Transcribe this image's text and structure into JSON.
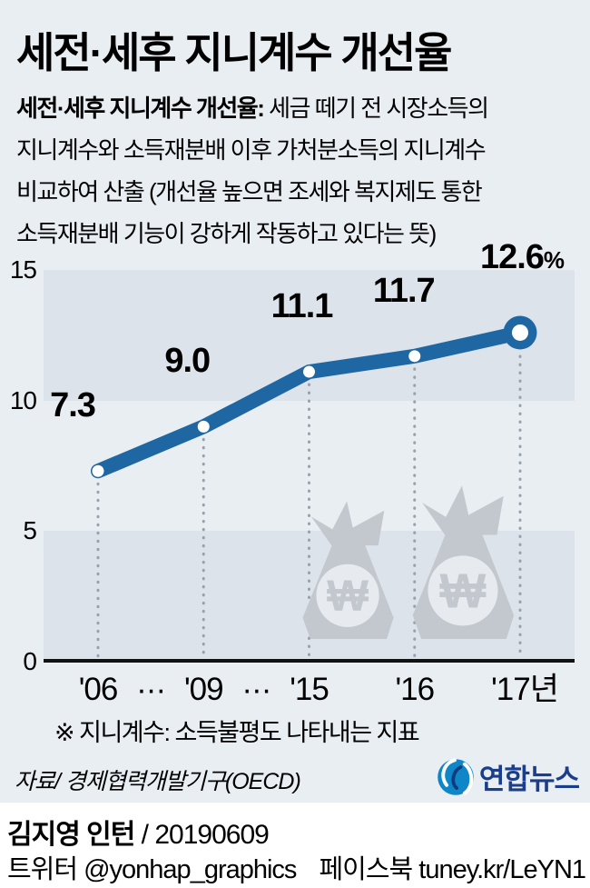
{
  "header": {
    "title": "세전·세후 지니계수 개선율",
    "desc_bold": "세전·세후 지니계수 개선율:",
    "desc_line1_rest": " 세금 떼기 전 시장소득의",
    "desc_line2": "지니계수와 소득재분배 이후 가처분소득의 지니계수",
    "desc_line3": "비교하여 산출 (개선율 높으면 조세와 복지제도 통한",
    "desc_line4": " 소득재분배 기능이 강하게 작동하고 있다는 뜻)"
  },
  "chart_data": {
    "type": "line",
    "title": "세전·세후 지니계수 개선율",
    "categories": [
      "'06",
      "'09",
      "'15",
      "'16",
      "'17년"
    ],
    "x_axis_display": [
      "'06",
      "···",
      "'09",
      "···",
      "'15",
      "'16",
      "'17년"
    ],
    "values": [
      7.3,
      9.0,
      11.1,
      11.7,
      12.6
    ],
    "point_labels": [
      "7.3",
      "9.0",
      "11.1",
      "11.7",
      "12.6"
    ],
    "unit": "%",
    "unit_on_last_point": true,
    "ylim": [
      0,
      15
    ],
    "yticks": [
      15,
      10,
      5,
      0
    ],
    "grid": "alternating horizontal bands at 0-5 and 10-15",
    "legend": "none",
    "won_symbol": "₩"
  },
  "colors": {
    "background": "#e9eef3",
    "band": "#dce3eb",
    "line": "#1e67a3",
    "marker_fill": "#ffffff",
    "dotted_guide": "#99a1aa",
    "bag": "#c3c8ce",
    "bag_inner": "#e7ebf0",
    "logo_blue": "#0e86c8",
    "logo_navy": "#1b3e8c"
  },
  "footnote": "※ 지니계수: 소득불평도 나타내는 지표",
  "source": "자료/ 경제협력개발기구(OECD)",
  "logo_text": "연합뉴스",
  "credit": {
    "author": "김지영 인턴",
    "date_part": " / 20190609",
    "twitter_label": "트위터",
    "twitter_handle": "@yonhap_graphics",
    "facebook_label": "페이스북",
    "facebook_url": "tuney.kr/LeYN1"
  }
}
